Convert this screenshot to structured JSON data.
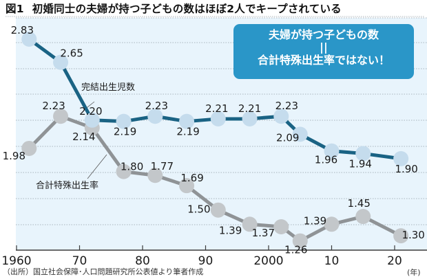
{
  "chart_data": {
    "type": "line",
    "title_fig": "図1",
    "title": "初婚同士の夫婦が持つ子どもの数はほぼ2人でキープされている",
    "callout": {
      "line1": "夫婦が持つ子どもの数",
      "equals": "||",
      "line2": "合計特殊出生率ではない！"
    },
    "xlabel": "(年)",
    "ylabel": "",
    "xlim": [
      1959,
      2023
    ],
    "ylim": [
      1.12,
      2.96
    ],
    "x_ticks": [
      1960,
      1970,
      1980,
      1990,
      2000,
      2010,
      2020
    ],
    "x_tick_labels": [
      "1960",
      "70",
      "80",
      "90",
      "2000",
      "10",
      "20"
    ],
    "grid": true,
    "series": [
      {
        "name": "完結出生児数",
        "color": "#1a6384",
        "marker_color": "#c5dced",
        "x": [
          1962,
          1967,
          1972,
          1977,
          1982,
          1987,
          1992,
          1997,
          2002,
          2005,
          2010,
          2015,
          2021
        ],
        "values": [
          2.83,
          2.65,
          2.2,
          2.19,
          2.23,
          2.19,
          2.21,
          2.21,
          2.23,
          2.09,
          1.96,
          1.94,
          1.9
        ],
        "labels": [
          "2.83",
          "2.65",
          "2.20",
          "2.19",
          "2.23",
          "2.19",
          "2.21",
          "2.21",
          "2.23",
          "2.09",
          "1.96",
          "1.94",
          "1.90"
        ]
      },
      {
        "name": "合計特殊出生率",
        "color": "#8f9396",
        "marker_color": "#c3c7ca",
        "x": [
          1962,
          1967,
          1972,
          1977,
          1982,
          1987,
          1992,
          1997,
          2002,
          2005,
          2010,
          2015,
          2021
        ],
        "values": [
          1.98,
          2.23,
          2.14,
          1.8,
          1.77,
          1.69,
          1.5,
          1.39,
          1.37,
          1.26,
          1.39,
          1.45,
          1.3
        ],
        "labels": [
          "1.98",
          "2.23",
          "2.14",
          "1.80",
          "1.77",
          "1.69",
          "1.50",
          "1.39",
          "1.37",
          "1.26",
          "1.39",
          "1.45",
          "1.30"
        ]
      }
    ],
    "source": "（出所）国立社会保障･人口問題研究所公表値より筆者作成",
    "colors": {
      "plot_background": "#e8f4fc",
      "callout_background": "#2a96c8",
      "grid": "#a9b4bc"
    }
  }
}
